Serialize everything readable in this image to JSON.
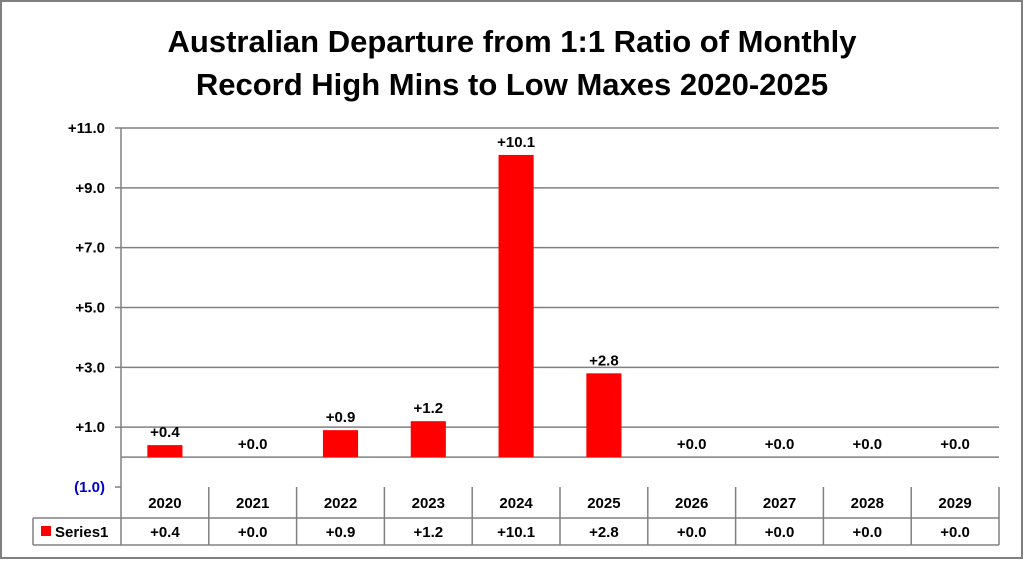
{
  "chart_data": {
    "type": "bar",
    "title": [
      "Australian  Departure from 1:1 Ratio of Monthly",
      "Record High Mins to Low Maxes 2020-2025"
    ],
    "categories": [
      "2020",
      "2021",
      "2022",
      "2023",
      "2024",
      "2025",
      "2026",
      "2027",
      "2028",
      "2029"
    ],
    "series": [
      {
        "name": "Series1",
        "values": [
          0.4,
          0.0,
          0.9,
          1.2,
          10.1,
          2.8,
          0.0,
          0.0,
          0.0,
          0.0
        ],
        "labels": [
          "+0.4",
          "+0.0",
          "+0.9",
          "+1.2",
          "+10.1",
          "+2.8",
          "+0.0",
          "+0.0",
          "+0.0",
          "+0.0"
        ],
        "color": "#ff0000"
      }
    ],
    "y_ticks": [
      -1,
      1,
      3,
      5,
      7,
      9,
      11
    ],
    "y_tick_labels": [
      "(1.0)",
      "+1.0",
      "+3.0",
      "+5.0",
      "+7.0",
      "+9.0",
      "+11.0"
    ],
    "negative_tick_color": "#0000cc",
    "ylim": [
      -1,
      11
    ],
    "baseline": 0,
    "grid": true,
    "grid_color": "#808080",
    "data_table": true,
    "xlabel": "",
    "ylabel": ""
  }
}
